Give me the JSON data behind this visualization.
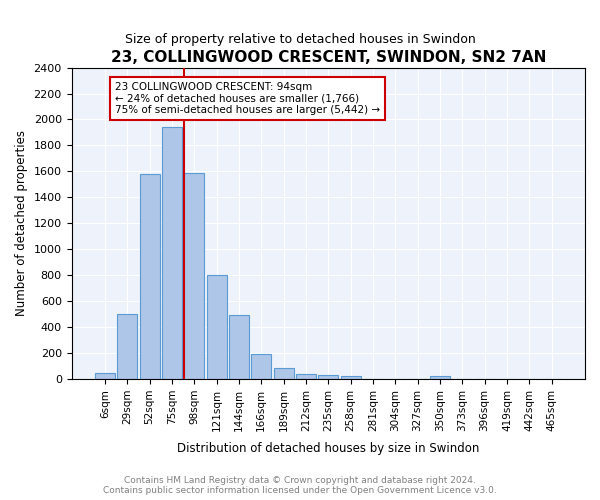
{
  "title": "23, COLLINGWOOD CRESCENT, SWINDON, SN2 7AN",
  "subtitle": "Size of property relative to detached houses in Swindon",
  "xlabel": "Distribution of detached houses by size in Swindon",
  "ylabel": "Number of detached properties",
  "categories": [
    "6sqm",
    "29sqm",
    "52sqm",
    "75sqm",
    "98sqm",
    "121sqm",
    "144sqm",
    "166sqm",
    "189sqm",
    "212sqm",
    "235sqm",
    "258sqm",
    "281sqm",
    "304sqm",
    "327sqm",
    "350sqm",
    "373sqm",
    "396sqm",
    "419sqm",
    "442sqm",
    "465sqm"
  ],
  "values": [
    50,
    500,
    1580,
    1940,
    1590,
    800,
    490,
    195,
    88,
    35,
    30,
    22,
    0,
    0,
    0,
    20,
    0,
    0,
    0,
    0,
    0
  ],
  "bar_color": "#aec6e8",
  "bar_edge_color": "#5b9bd5",
  "annotation_text": "23 COLLINGWOOD CRESCENT: 94sqm\n← 24% of detached houses are smaller (1,766)\n75% of semi-detached houses are larger (5,442) →",
  "vline_color": "#cc0000",
  "vline_x_index": 4,
  "ylim": [
    0,
    2400
  ],
  "yticks": [
    0,
    200,
    400,
    600,
    800,
    1000,
    1200,
    1400,
    1600,
    1800,
    2000,
    2200,
    2400
  ],
  "footer_text": "Contains HM Land Registry data © Crown copyright and database right 2024.\nContains public sector information licensed under the Open Government Licence v3.0.",
  "plot_bg_color": "#eef2fa"
}
